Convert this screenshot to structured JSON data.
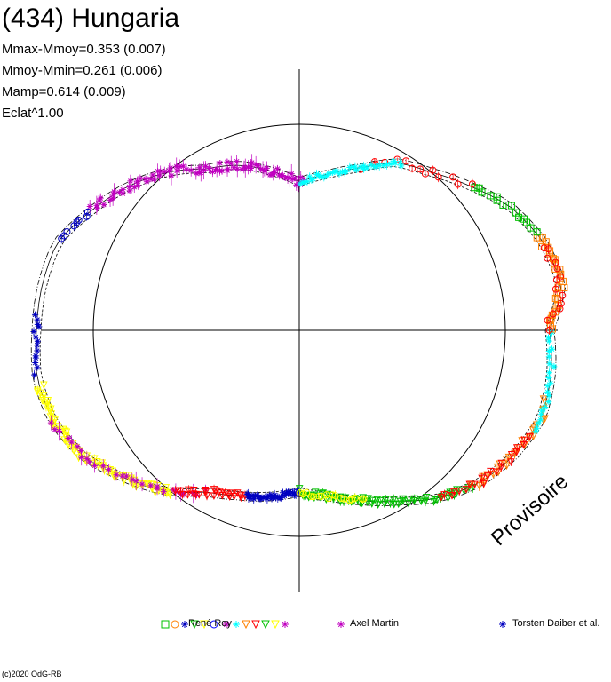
{
  "header": {
    "title": "(434) Hungaria",
    "stats": [
      "Mmax-Mmoy=0.353 (0.007)",
      "Mmoy-Mmin=0.261 (0.006)",
      "Mamp=0.614 (0.009)",
      "Eclat^1.00"
    ]
  },
  "watermark": "Provisoire",
  "copyright": "(c)2020 OdG-RB",
  "legend": {
    "entries": [
      "René Roy",
      "Axel Martin",
      "Torsten Daiber et al."
    ],
    "marker_colors": [
      "#00c000",
      "#ff8000",
      "#0000c0",
      "#00c000",
      "#ffff00",
      "#0000ff",
      "#c000c0",
      "#00ffff",
      "#ff8000",
      "#ff0000",
      "#00c000",
      "#ffff00",
      "#c000c0",
      "#0000c0"
    ]
  },
  "chart_data": {
    "type": "scatter",
    "coordinate_system": "polar",
    "description_of_axes": "rotation phase plotted as angle, magnitude as radius",
    "reference_circle": true,
    "series": [
      {
        "name": "René Roy",
        "color": "#ff0000"
      },
      {
        "name": "René Roy",
        "color": "#00ffff"
      },
      {
        "name": "René Roy",
        "color": "#ff8000"
      },
      {
        "name": "René Roy",
        "color": "#00c000"
      },
      {
        "name": "René Roy",
        "color": "#ffff00"
      },
      {
        "name": "René Roy",
        "color": "#0000c0"
      },
      {
        "name": "Axel Martin",
        "color": "#c000c0"
      },
      {
        "name": "Torsten Daiber et al.",
        "color": "#0000c0"
      }
    ]
  }
}
